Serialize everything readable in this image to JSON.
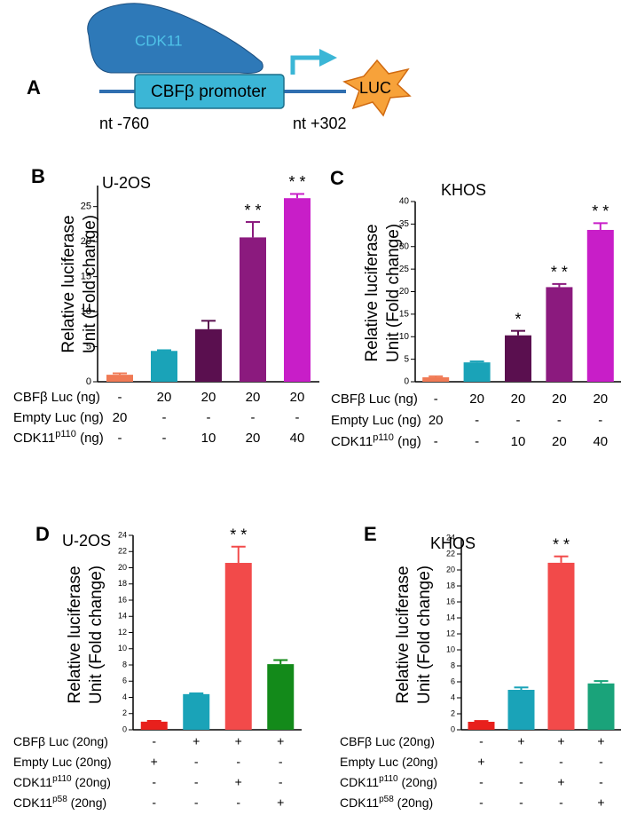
{
  "diagram": {
    "panel": "A",
    "protein": "CDK11",
    "promoter": "CBFβ promoter",
    "reporter": "LUC",
    "start": "nt -760",
    "end": "nt +302"
  },
  "chart_data": [
    {
      "type": "bar",
      "panel": "B",
      "title": "U-2OS",
      "ylabel": [
        "Relative luciferase",
        "Unit (Fold change)"
      ],
      "values": [
        1.0,
        4.4,
        7.5,
        20.6,
        26.2
      ],
      "errors": [
        0.2,
        0.1,
        1.2,
        2.2,
        0.6
      ],
      "colors": [
        "#f07a55",
        "#1aa3b8",
        "#5a0f4f",
        "#8b1a7e",
        "#c81ec8"
      ],
      "annotations": [
        null,
        null,
        null,
        "* *",
        "* *"
      ],
      "ylim": [
        0,
        28
      ],
      "yticks": [
        0,
        5,
        10,
        15,
        20,
        25
      ],
      "conditions": [
        {
          "label": "CBFβ Luc (ng)",
          "cells": [
            "-",
            "20",
            "20",
            "20",
            "20"
          ]
        },
        {
          "label": "Empty Luc (ng)",
          "cells": [
            "20",
            "-",
            "-",
            "-",
            "-"
          ]
        },
        {
          "label": "CDK11",
          "sup": "p110",
          "tail": " (ng)",
          "cells": [
            "-",
            "-",
            "10",
            "20",
            "40"
          ]
        }
      ]
    },
    {
      "type": "bar",
      "panel": "C",
      "title": "KHOS",
      "ylabel": [
        "Relative luciferase",
        "Unit (Fold change)"
      ],
      "values": [
        1.0,
        4.3,
        10.3,
        21.0,
        33.7
      ],
      "errors": [
        0.2,
        0.2,
        1.0,
        0.7,
        1.5
      ],
      "colors": [
        "#f07a55",
        "#1aa3b8",
        "#5a0f4f",
        "#8b1a7e",
        "#c81ec8"
      ],
      "annotations": [
        null,
        null,
        "*",
        "* *",
        "* *"
      ],
      "ylim": [
        0,
        40
      ],
      "yticks": [
        0,
        5,
        10,
        15,
        20,
        25,
        30,
        35,
        40
      ],
      "conditions": [
        {
          "label": "CBFβ Luc (ng)",
          "cells": [
            "-",
            "20",
            "20",
            "20",
            "20"
          ]
        },
        {
          "label": "Empty Luc (ng)",
          "cells": [
            "20",
            "-",
            "-",
            "-",
            "-"
          ]
        },
        {
          "label": "CDK11",
          "sup": "p110",
          "tail": " (ng)",
          "cells": [
            "-",
            "-",
            "10",
            "20",
            "40"
          ]
        }
      ]
    },
    {
      "type": "bar",
      "panel": "D",
      "title": "U-2OS",
      "ylabel": [
        "Relative luciferase",
        "Unit (Fold change)"
      ],
      "values": [
        1.0,
        4.4,
        20.6,
        8.1
      ],
      "errors": [
        0.1,
        0.1,
        2.0,
        0.5
      ],
      "colors": [
        "#e8201c",
        "#1aa3b8",
        "#f24a4a",
        "#138a1a"
      ],
      "annotations": [
        null,
        null,
        "* *",
        null
      ],
      "ylim": [
        0,
        24
      ],
      "yticks": [
        0,
        2,
        4,
        6,
        8,
        10,
        12,
        14,
        16,
        18,
        20,
        22,
        24
      ],
      "conditions": [
        {
          "label": "CBFβ Luc (20ng)",
          "cells": [
            "-",
            "+",
            "+",
            "+"
          ]
        },
        {
          "label": "Empty Luc (20ng)",
          "cells": [
            "+",
            "-",
            "-",
            "-"
          ]
        },
        {
          "label": "CDK11",
          "sup": "p110",
          "tail": " (20ng)",
          "cells": [
            "-",
            "-",
            "+",
            "-"
          ]
        },
        {
          "label": "CDK11",
          "sup": "p58",
          "tail": " (20ng)",
          "cells": [
            "-",
            "-",
            "-",
            "+"
          ]
        }
      ]
    },
    {
      "type": "bar",
      "panel": "E",
      "title": "KHOS",
      "ylabel": [
        "Relative luciferase",
        "Unit (Fold change)"
      ],
      "values": [
        1.0,
        5.0,
        20.9,
        5.8
      ],
      "errors": [
        0.1,
        0.3,
        0.8,
        0.3
      ],
      "colors": [
        "#e8201c",
        "#1aa3b8",
        "#f24a4a",
        "#1aa37a"
      ],
      "annotations": [
        null,
        null,
        "* *",
        null
      ],
      "ylim": [
        0,
        24
      ],
      "yticks": [
        0,
        2,
        4,
        6,
        8,
        10,
        12,
        14,
        16,
        18,
        20,
        22,
        24
      ],
      "conditions": [
        {
          "label": "CBFβ Luc (20ng)",
          "cells": [
            "-",
            "+",
            "+",
            "+"
          ]
        },
        {
          "label": "Empty Luc (20ng)",
          "cells": [
            "+",
            "-",
            "-",
            "-"
          ]
        },
        {
          "label": "CDK11",
          "sup": "p110",
          "tail": " (20ng)",
          "cells": [
            "-",
            "-",
            "+",
            "-"
          ]
        },
        {
          "label": "CDK11",
          "sup": "p58",
          "tail": " (20ng)",
          "cells": [
            "-",
            "-",
            "-",
            "+"
          ]
        }
      ]
    }
  ]
}
